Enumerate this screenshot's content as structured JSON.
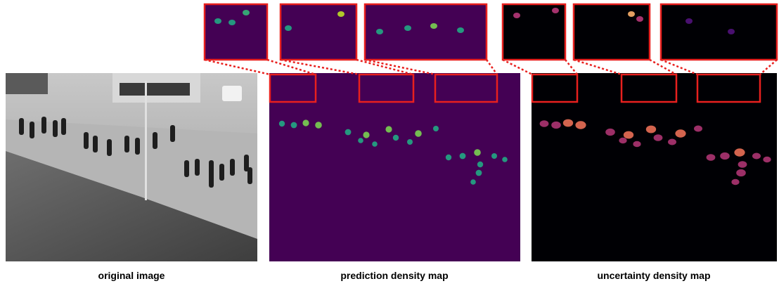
{
  "captions": [
    "original image",
    "prediction density map",
    "uncertainty density map"
  ]
}
